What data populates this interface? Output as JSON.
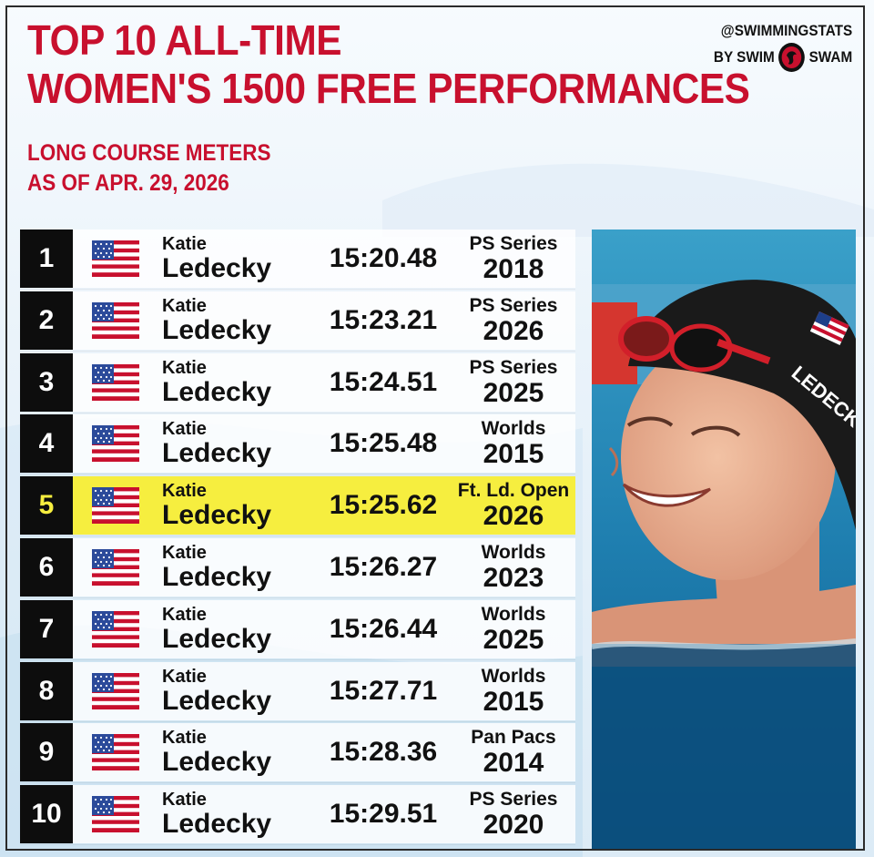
{
  "header": {
    "title_line1": "TOP 10 ALL-TIME",
    "title_line2": "WOMEN'S 1500 FREE PERFORMANCES",
    "subtitle_line1": "LONG COURSE METERS",
    "subtitle_line2": "AS OF APR. 29, 2026"
  },
  "brand": {
    "handle": "@SWIMMINGSTATS",
    "by_prefix": "BY SWIM",
    "by_suffix": "SWAM"
  },
  "colors": {
    "accent_red": "#c8102e",
    "highlight_yellow": "#f6ee3f",
    "rank_black": "#0d0d0d"
  },
  "rows": [
    {
      "rank": "1",
      "country_icon": "us-flag-icon",
      "first": "Katie",
      "last": "Ledecky",
      "time": "15:20.48",
      "meet": "PS Series",
      "year": "2018",
      "highlight": false
    },
    {
      "rank": "2",
      "country_icon": "us-flag-icon",
      "first": "Katie",
      "last": "Ledecky",
      "time": "15:23.21",
      "meet": "PS Series",
      "year": "2026",
      "highlight": false
    },
    {
      "rank": "3",
      "country_icon": "us-flag-icon",
      "first": "Katie",
      "last": "Ledecky",
      "time": "15:24.51",
      "meet": "PS Series",
      "year": "2025",
      "highlight": false
    },
    {
      "rank": "4",
      "country_icon": "us-flag-icon",
      "first": "Katie",
      "last": "Ledecky",
      "time": "15:25.48",
      "meet": "Worlds",
      "year": "2015",
      "highlight": false
    },
    {
      "rank": "5",
      "country_icon": "us-flag-icon",
      "first": "Katie",
      "last": "Ledecky",
      "time": "15:25.62",
      "meet": "Ft. Ld. Open",
      "year": "2026",
      "highlight": true
    },
    {
      "rank": "6",
      "country_icon": "us-flag-icon",
      "first": "Katie",
      "last": "Ledecky",
      "time": "15:26.27",
      "meet": "Worlds",
      "year": "2023",
      "highlight": false
    },
    {
      "rank": "7",
      "country_icon": "us-flag-icon",
      "first": "Katie",
      "last": "Ledecky",
      "time": "15:26.44",
      "meet": "Worlds",
      "year": "2025",
      "highlight": false
    },
    {
      "rank": "8",
      "country_icon": "us-flag-icon",
      "first": "Katie",
      "last": "Ledecky",
      "time": "15:27.71",
      "meet": "Worlds",
      "year": "2015",
      "highlight": false
    },
    {
      "rank": "9",
      "country_icon": "us-flag-icon",
      "first": "Katie",
      "last": "Ledecky",
      "time": "15:28.36",
      "meet": "Pan Pacs",
      "year": "2014",
      "highlight": false
    },
    {
      "rank": "10",
      "country_icon": "us-flag-icon",
      "first": "Katie",
      "last": "Ledecky",
      "time": "15:29.51",
      "meet": "PS Series",
      "year": "2020",
      "highlight": false
    }
  ],
  "photo": {
    "icon": "swimmer-photo",
    "cap_text": "LEDECK"
  }
}
